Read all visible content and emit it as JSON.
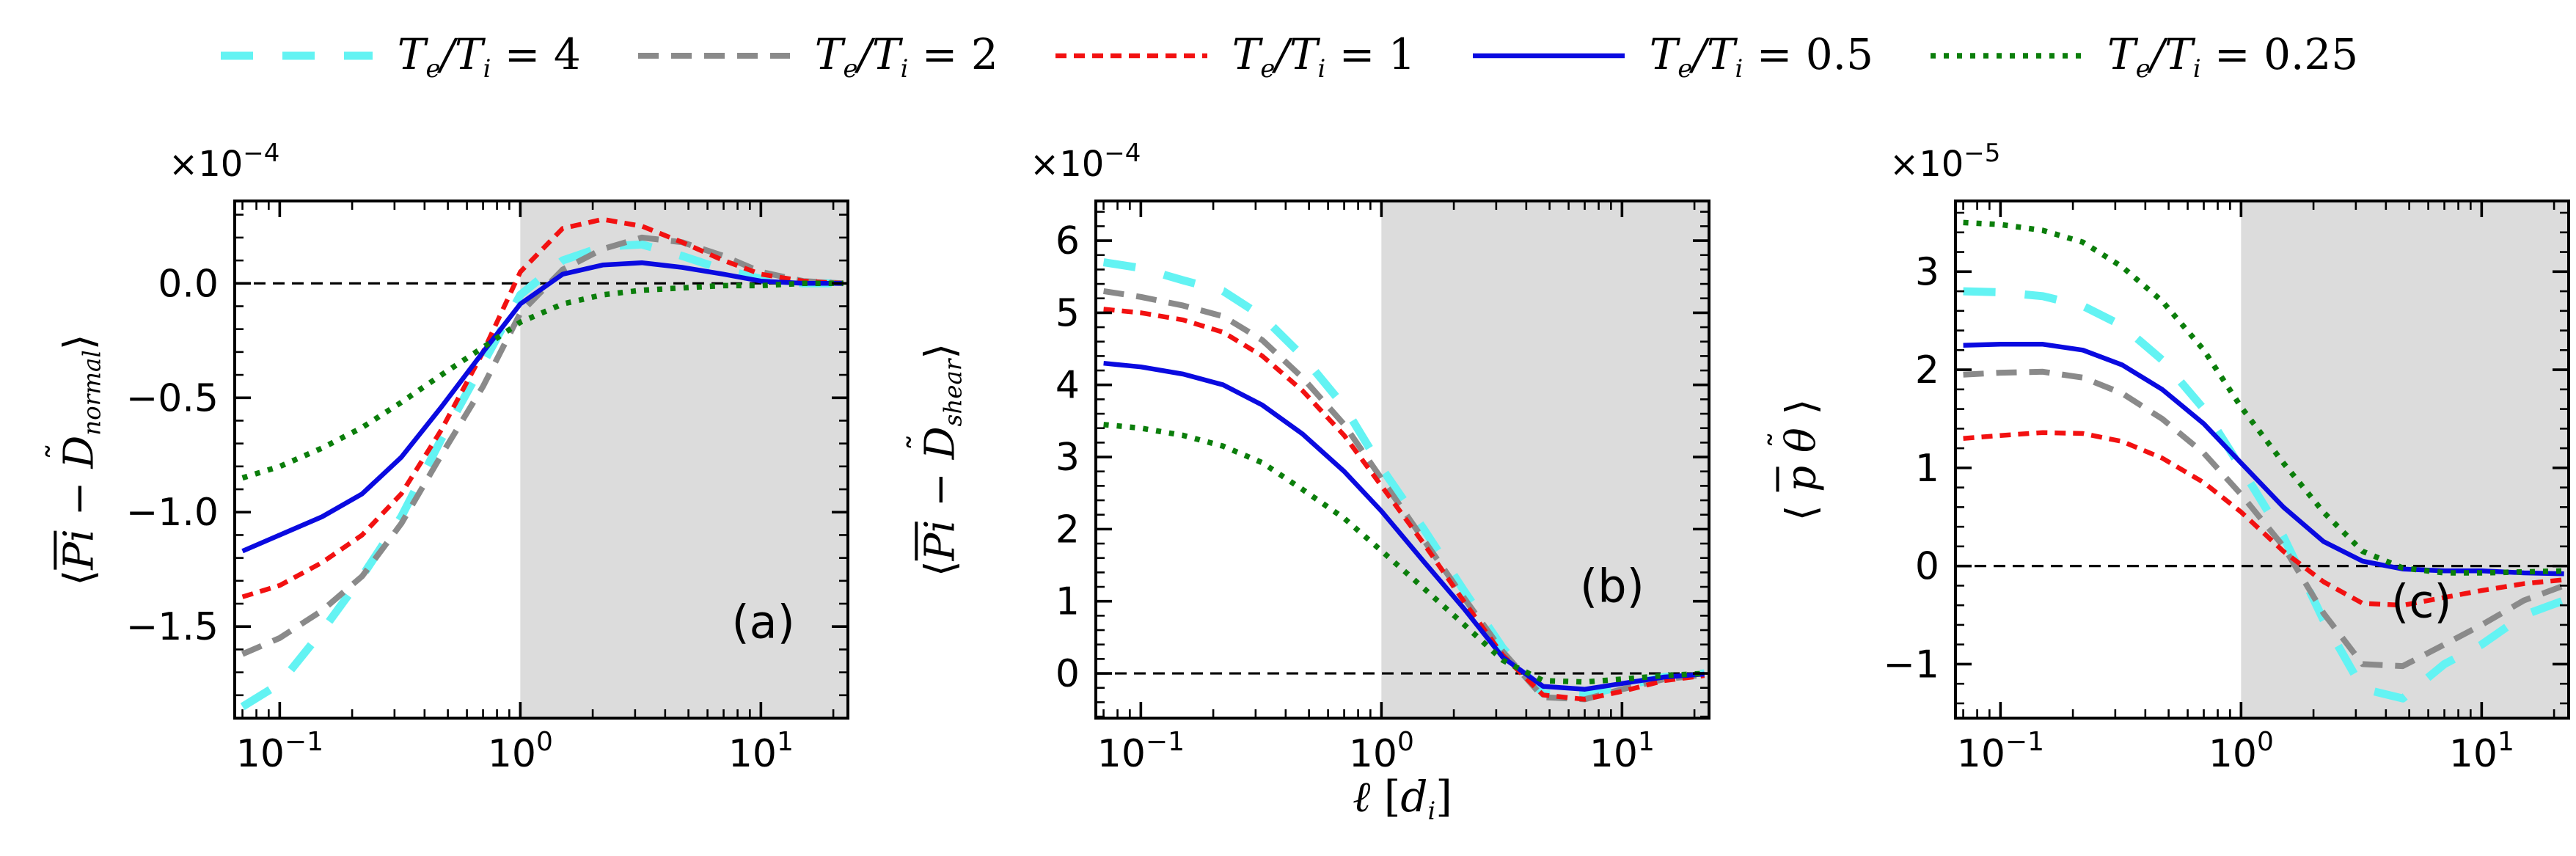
{
  "chart_data": {
    "type": "line",
    "title": "",
    "colors": {
      "cyan": "#63F3F3",
      "gray": "#8A8A8A",
      "red": "#F21111",
      "blue": "#0A0AE0",
      "green": "#0B7E0B",
      "shade": "#DCDCDC",
      "axis": "#000000",
      "background": "#FFFFFF"
    },
    "xlabel_segments": [
      {
        "t": "ℓ",
        "it": true
      },
      {
        "t": " ["
      },
      {
        "t": "d",
        "it": true
      },
      {
        "t": "i",
        "sub": true
      },
      {
        "t": "]"
      }
    ],
    "x": [
      0.07,
      0.1,
      0.15,
      0.22,
      0.32,
      0.47,
      0.7,
      1.0,
      1.5,
      2.2,
      3.2,
      4.7,
      7.0,
      10,
      15,
      22
    ],
    "xlim": [
      0.065,
      23
    ],
    "xticks": [
      {
        "v": 0.1,
        "base": "10",
        "exp": "−1"
      },
      {
        "v": 1,
        "base": "10",
        "exp": "0"
      },
      {
        "v": 10,
        "base": "10",
        "exp": "1"
      }
    ],
    "legend": {
      "position": "top",
      "entries": [
        {
          "key": "cyan",
          "value": "4",
          "dash": "44 40",
          "width": 11,
          "segments": [
            {
              "t": "T",
              "it": true
            },
            {
              "t": "e",
              "sub": true
            },
            {
              "t": "/",
              "it": true
            },
            {
              "t": "T",
              "it": true
            },
            {
              "t": "i",
              "sub": true
            },
            {
              "t": " = 4"
            }
          ]
        },
        {
          "key": "gray",
          "value": "2",
          "dash": "28 17",
          "width": 8,
          "segments": [
            {
              "t": "T",
              "it": true
            },
            {
              "t": "e",
              "sub": true
            },
            {
              "t": "/",
              "it": true
            },
            {
              "t": "T",
              "it": true
            },
            {
              "t": "i",
              "sub": true
            },
            {
              "t": " = 2"
            }
          ]
        },
        {
          "key": "red",
          "value": "1",
          "dash": "15 10",
          "width": 6.5,
          "segments": [
            {
              "t": "T",
              "it": true
            },
            {
              "t": "e",
              "sub": true
            },
            {
              "t": "/",
              "it": true
            },
            {
              "t": "T",
              "it": true
            },
            {
              "t": "i",
              "sub": true
            },
            {
              "t": " = 1"
            }
          ]
        },
        {
          "key": "blue",
          "value": "0.5",
          "dash": "",
          "width": 6.5,
          "segments": [
            {
              "t": "T",
              "it": true
            },
            {
              "t": "e",
              "sub": true
            },
            {
              "t": "/",
              "it": true
            },
            {
              "t": "T",
              "it": true
            },
            {
              "t": "i",
              "sub": true
            },
            {
              "t": " = 0.5"
            }
          ]
        },
        {
          "key": "green",
          "value": "0.25",
          "dash": "7 11",
          "width": 7.5,
          "segments": [
            {
              "t": "T",
              "it": true
            },
            {
              "t": "e",
              "sub": true
            },
            {
              "t": "/",
              "it": true
            },
            {
              "t": "T",
              "it": true
            },
            {
              "t": "i",
              "sub": true
            },
            {
              "t": " = 0.25"
            }
          ]
        }
      ]
    },
    "panels": [
      {
        "letter": "(a)",
        "letter_pos": {
          "fx": 0.862,
          "fy": 0.845
        },
        "offset_label": {
          "base": "×10",
          "exp": "−4"
        },
        "ylabel_segments": [
          {
            "t": "⟨"
          },
          {
            "t": "Pi",
            "it": true,
            "bar": true
          },
          {
            "t": " − "
          },
          {
            "t": "D",
            "it": true,
            "accent": "˜"
          },
          {
            "t": "normal",
            "sub": true
          },
          {
            "t": "⟩"
          }
        ],
        "ylim": [
          -1.9,
          0.36
        ],
        "yticks": [
          {
            "v": 0.0,
            "label": "0.0"
          },
          {
            "v": -0.5,
            "label": "−0.5"
          },
          {
            "v": -1.0,
            "label": "−1.0"
          },
          {
            "v": -1.5,
            "label": "−1.5"
          }
        ],
        "yminor_step": 0.1,
        "shaded_from": 1.0,
        "zero_line": true,
        "series": [
          {
            "name": "Te/Ti = 4",
            "key": "cyan",
            "y": [
              -1.85,
              -1.75,
              -1.52,
              -1.28,
              -1.02,
              -0.68,
              -0.35,
              -0.05,
              0.1,
              0.16,
              0.17,
              0.12,
              0.06,
              0.02,
              0.0,
              0.0
            ]
          },
          {
            "name": "Te/Ti = 2",
            "key": "gray",
            "y": [
              -1.62,
              -1.55,
              -1.43,
              -1.28,
              -1.05,
              -0.75,
              -0.45,
              -0.13,
              0.06,
              0.15,
              0.2,
              0.18,
              0.12,
              0.05,
              0.01,
              0.0
            ]
          },
          {
            "name": "Te/Ti = 1",
            "key": "red",
            "y": [
              -1.37,
              -1.32,
              -1.22,
              -1.1,
              -0.92,
              -0.64,
              -0.3,
              0.05,
              0.24,
              0.28,
              0.25,
              0.18,
              0.1,
              0.04,
              0.01,
              0.0
            ]
          },
          {
            "name": "Te/Ti = 0.5",
            "key": "blue",
            "y": [
              -1.17,
              -1.1,
              -1.02,
              -0.92,
              -0.76,
              -0.54,
              -0.3,
              -0.09,
              0.04,
              0.08,
              0.09,
              0.07,
              0.04,
              0.01,
              0.0,
              0.0
            ]
          },
          {
            "name": "Te/Ti = 0.25",
            "key": "green",
            "y": [
              -0.85,
              -0.8,
              -0.72,
              -0.63,
              -0.52,
              -0.4,
              -0.28,
              -0.17,
              -0.09,
              -0.05,
              -0.03,
              -0.02,
              -0.01,
              -0.01,
              0.0,
              0.0
            ]
          }
        ]
      },
      {
        "letter": "(b)",
        "letter_pos": {
          "fx": 0.842,
          "fy": 0.775
        },
        "offset_label": {
          "base": "×10",
          "exp": "−4"
        },
        "ylabel_segments": [
          {
            "t": "⟨"
          },
          {
            "t": "Pi",
            "it": true,
            "bar": true
          },
          {
            "t": " − "
          },
          {
            "t": "D",
            "it": true,
            "accent": "˜"
          },
          {
            "t": "shear",
            "sub": true
          },
          {
            "t": "⟩"
          }
        ],
        "ylim": [
          -0.62,
          6.55
        ],
        "yticks": [
          {
            "v": 0,
            "label": "0"
          },
          {
            "v": 1,
            "label": "1"
          },
          {
            "v": 2,
            "label": "2"
          },
          {
            "v": 3,
            "label": "3"
          },
          {
            "v": 4,
            "label": "4"
          },
          {
            "v": 5,
            "label": "5"
          },
          {
            "v": 6,
            "label": "6"
          }
        ],
        "yminor_step": 0.2,
        "shaded_from": 1.0,
        "zero_line": true,
        "series": [
          {
            "name": "Te/Ti = 4",
            "key": "cyan",
            "y": [
              5.7,
              5.62,
              5.45,
              5.3,
              4.95,
              4.4,
              3.7,
              2.85,
              2.0,
              1.15,
              0.35,
              -0.28,
              -0.3,
              -0.18,
              -0.05,
              0.0
            ]
          },
          {
            "name": "Te/Ti = 2",
            "key": "gray",
            "y": [
              5.3,
              5.22,
              5.1,
              4.95,
              4.62,
              4.1,
              3.45,
              2.7,
              1.85,
              1.05,
              0.3,
              -0.33,
              -0.36,
              -0.22,
              -0.08,
              -0.02
            ]
          },
          {
            "name": "Te/Ti = 1",
            "key": "red",
            "y": [
              5.05,
              5.0,
              4.9,
              4.73,
              4.4,
              3.92,
              3.3,
              2.6,
              1.8,
              1.0,
              0.25,
              -0.3,
              -0.36,
              -0.25,
              -0.1,
              -0.03
            ]
          },
          {
            "name": "Te/Ti = 0.5",
            "key": "blue",
            "y": [
              4.3,
              4.25,
              4.15,
              4.0,
              3.72,
              3.32,
              2.8,
              2.25,
              1.55,
              0.9,
              0.22,
              -0.18,
              -0.22,
              -0.14,
              -0.05,
              -0.01
            ]
          },
          {
            "name": "Te/Ti = 0.25",
            "key": "green",
            "y": [
              3.45,
              3.4,
              3.3,
              3.15,
              2.92,
              2.55,
              2.15,
              1.7,
              1.18,
              0.68,
              0.18,
              -0.1,
              -0.12,
              -0.08,
              -0.03,
              0.0
            ]
          }
        ]
      },
      {
        "letter": "(c)",
        "letter_pos": {
          "fx": 0.76,
          "fy": 0.805
        },
        "offset_label": {
          "base": "×10",
          "exp": "−5"
        },
        "ylabel_segments": [
          {
            "t": "⟨ "
          },
          {
            "t": "p",
            "it": true,
            "bar": true
          },
          {
            "t": " "
          },
          {
            "t": "θ",
            "it": true,
            "accent": "˜"
          },
          {
            "t": " ⟩"
          }
        ],
        "ylim": [
          -1.55,
          3.72
        ],
        "yticks": [
          {
            "v": -1,
            "label": "−1"
          },
          {
            "v": 0,
            "label": "0"
          },
          {
            "v": 1,
            "label": "1"
          },
          {
            "v": 2,
            "label": "2"
          },
          {
            "v": 3,
            "label": "3"
          }
        ],
        "yminor_step": 0.2,
        "shaded_from": 1.0,
        "zero_line": true,
        "series": [
          {
            "name": "Te/Ti = 4",
            "key": "cyan",
            "y": [
              2.8,
              2.79,
              2.75,
              2.65,
              2.45,
              2.1,
              1.6,
              1.0,
              0.3,
              -0.55,
              -1.25,
              -1.35,
              -1.0,
              -0.8,
              -0.5,
              -0.35
            ]
          },
          {
            "name": "Te/Ti = 2",
            "key": "gray",
            "y": [
              1.95,
              1.97,
              1.98,
              1.92,
              1.76,
              1.5,
              1.15,
              0.73,
              0.2,
              -0.48,
              -1.0,
              -1.02,
              -0.8,
              -0.6,
              -0.35,
              -0.2
            ]
          },
          {
            "name": "Te/Ti = 1",
            "key": "red",
            "y": [
              1.3,
              1.33,
              1.36,
              1.35,
              1.27,
              1.1,
              0.85,
              0.55,
              0.15,
              -0.16,
              -0.38,
              -0.4,
              -0.32,
              -0.25,
              -0.18,
              -0.14
            ]
          },
          {
            "name": "Te/Ti = 0.5",
            "key": "blue",
            "y": [
              2.25,
              2.26,
              2.26,
              2.2,
              2.05,
              1.8,
              1.45,
              1.05,
              0.6,
              0.25,
              0.05,
              -0.03,
              -0.05,
              -0.05,
              -0.07,
              -0.08
            ]
          },
          {
            "name": "Te/Ti = 0.25",
            "key": "green",
            "y": [
              3.5,
              3.48,
              3.42,
              3.3,
              3.05,
              2.7,
              2.2,
              1.62,
              1.05,
              0.55,
              0.15,
              -0.02,
              -0.07,
              -0.07,
              -0.06,
              -0.05
            ]
          }
        ]
      }
    ]
  }
}
